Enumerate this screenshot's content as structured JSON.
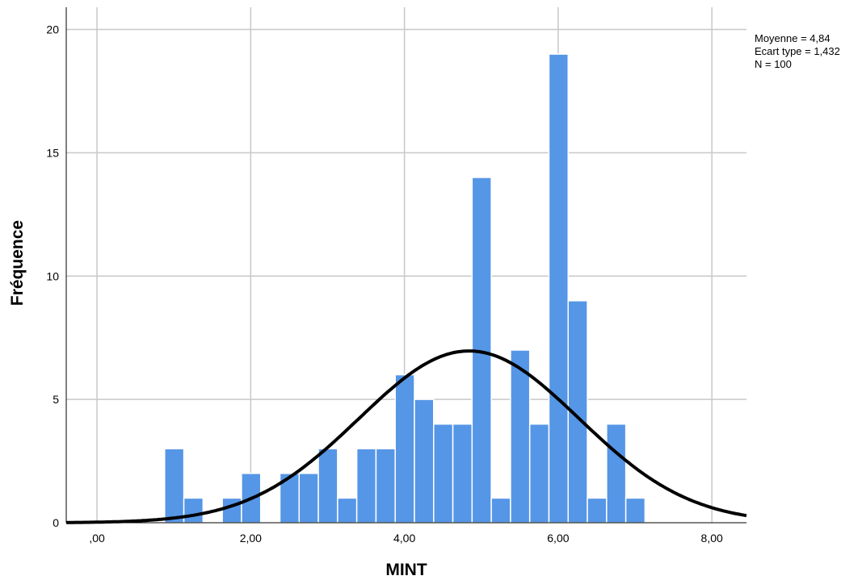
{
  "chart_data": {
    "type": "histogram",
    "xlabel": "MINT",
    "ylabel": "Fréquence",
    "xlim": [
      -0.4,
      8.45
    ],
    "ylim": [
      0,
      20.9
    ],
    "x_ticks": [
      0,
      2,
      4,
      6,
      8
    ],
    "x_tick_labels": [
      ",00",
      "2,00",
      "4,00",
      "6,00",
      "8,00"
    ],
    "y_ticks": [
      0,
      5,
      10,
      15,
      20
    ],
    "y_tick_labels": [
      "0",
      "5",
      "10",
      "15",
      "20"
    ],
    "grid": true,
    "bar_color": "#5596e6",
    "bar_edge_color": "#ffffff",
    "curve_color": "#000000",
    "bins": [
      {
        "x0": 0.88,
        "x1": 1.13,
        "count": 3
      },
      {
        "x0": 1.13,
        "x1": 1.38,
        "count": 1
      },
      {
        "x0": 1.38,
        "x1": 1.63,
        "count": 0
      },
      {
        "x0": 1.63,
        "x1": 1.88,
        "count": 1
      },
      {
        "x0": 1.88,
        "x1": 2.13,
        "count": 2
      },
      {
        "x0": 2.13,
        "x1": 2.38,
        "count": 0
      },
      {
        "x0": 2.38,
        "x1": 2.63,
        "count": 2
      },
      {
        "x0": 2.63,
        "x1": 2.88,
        "count": 2
      },
      {
        "x0": 2.88,
        "x1": 3.13,
        "count": 3
      },
      {
        "x0": 3.13,
        "x1": 3.38,
        "count": 1
      },
      {
        "x0": 3.38,
        "x1": 3.63,
        "count": 3
      },
      {
        "x0": 3.63,
        "x1": 3.88,
        "count": 3
      },
      {
        "x0": 3.88,
        "x1": 4.13,
        "count": 6
      },
      {
        "x0": 4.13,
        "x1": 4.38,
        "count": 5
      },
      {
        "x0": 4.38,
        "x1": 4.63,
        "count": 4
      },
      {
        "x0": 4.63,
        "x1": 4.88,
        "count": 4
      },
      {
        "x0": 4.88,
        "x1": 5.13,
        "count": 14
      },
      {
        "x0": 5.13,
        "x1": 5.38,
        "count": 1
      },
      {
        "x0": 5.38,
        "x1": 5.63,
        "count": 7
      },
      {
        "x0": 5.63,
        "x1": 5.88,
        "count": 4
      },
      {
        "x0": 5.88,
        "x1": 6.13,
        "count": 19
      },
      {
        "x0": 6.13,
        "x1": 6.38,
        "count": 9
      },
      {
        "x0": 6.38,
        "x1": 6.63,
        "count": 1
      },
      {
        "x0": 6.63,
        "x1": 6.88,
        "count": 4
      },
      {
        "x0": 6.88,
        "x1": 7.13,
        "count": 1
      }
    ],
    "normal_curve": {
      "mean": 4.84,
      "std_dev": 1.432,
      "n": 100,
      "bin_width": 0.25
    },
    "stats": {
      "mean_label": "Moyenne = 4,84",
      "std_label": "Ecart type = 1,432",
      "n_label": "N = 100"
    }
  }
}
